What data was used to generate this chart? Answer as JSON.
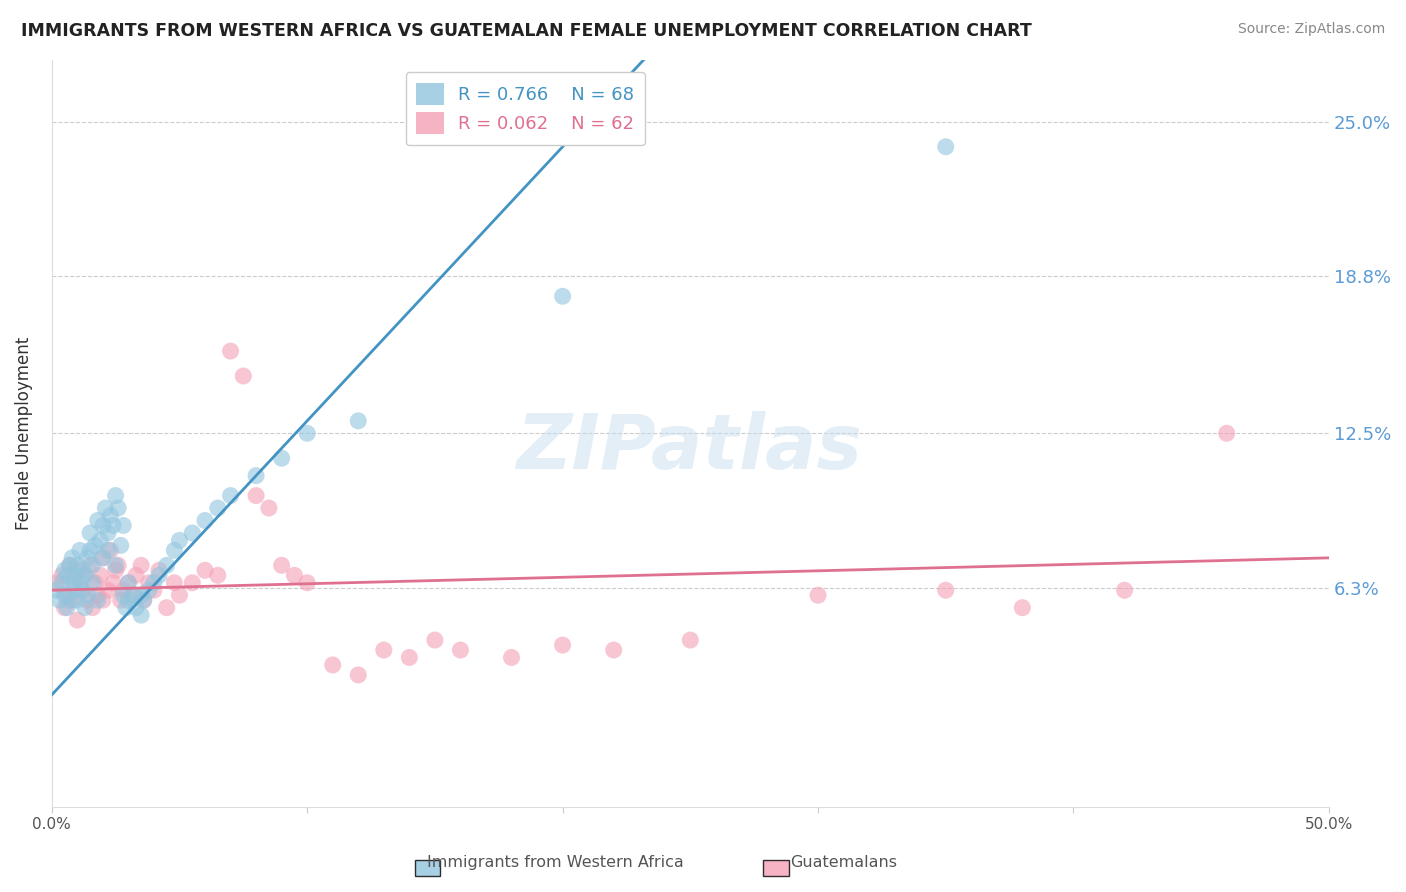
{
  "title": "IMMIGRANTS FROM WESTERN AFRICA VS GUATEMALAN FEMALE UNEMPLOYMENT CORRELATION CHART",
  "source": "Source: ZipAtlas.com",
  "ylabel": "Female Unemployment",
  "xlim": [
    0.0,
    0.5
  ],
  "ylim": [
    -0.025,
    0.275
  ],
  "legend_r1": "R = 0.766",
  "legend_n1": "N = 68",
  "legend_r2": "R = 0.062",
  "legend_n2": "N = 62",
  "color_blue": "#92c5de",
  "color_pink": "#f4a0b5",
  "regression_blue_color": "#4393c3",
  "regression_pink_color": "#e07090",
  "watermark": "ZIPatlas",
  "blue_scatter": [
    [
      0.002,
      0.062
    ],
    [
      0.003,
      0.058
    ],
    [
      0.004,
      0.065
    ],
    [
      0.005,
      0.07
    ],
    [
      0.005,
      0.06
    ],
    [
      0.006,
      0.055
    ],
    [
      0.006,
      0.068
    ],
    [
      0.007,
      0.072
    ],
    [
      0.007,
      0.058
    ],
    [
      0.008,
      0.065
    ],
    [
      0.008,
      0.075
    ],
    [
      0.009,
      0.062
    ],
    [
      0.009,
      0.068
    ],
    [
      0.01,
      0.058
    ],
    [
      0.01,
      0.072
    ],
    [
      0.011,
      0.065
    ],
    [
      0.011,
      0.078
    ],
    [
      0.012,
      0.07
    ],
    [
      0.012,
      0.062
    ],
    [
      0.013,
      0.068
    ],
    [
      0.013,
      0.055
    ],
    [
      0.014,
      0.075
    ],
    [
      0.014,
      0.06
    ],
    [
      0.015,
      0.085
    ],
    [
      0.015,
      0.078
    ],
    [
      0.016,
      0.072
    ],
    [
      0.016,
      0.065
    ],
    [
      0.017,
      0.08
    ],
    [
      0.018,
      0.09
    ],
    [
      0.018,
      0.058
    ],
    [
      0.019,
      0.082
    ],
    [
      0.02,
      0.088
    ],
    [
      0.02,
      0.075
    ],
    [
      0.021,
      0.095
    ],
    [
      0.022,
      0.085
    ],
    [
      0.022,
      0.078
    ],
    [
      0.023,
      0.092
    ],
    [
      0.024,
      0.088
    ],
    [
      0.025,
      0.1
    ],
    [
      0.025,
      0.072
    ],
    [
      0.026,
      0.095
    ],
    [
      0.027,
      0.08
    ],
    [
      0.028,
      0.088
    ],
    [
      0.028,
      0.06
    ],
    [
      0.029,
      0.055
    ],
    [
      0.03,
      0.058
    ],
    [
      0.03,
      0.065
    ],
    [
      0.032,
      0.06
    ],
    [
      0.033,
      0.055
    ],
    [
      0.035,
      0.052
    ],
    [
      0.035,
      0.06
    ],
    [
      0.036,
      0.058
    ],
    [
      0.038,
      0.062
    ],
    [
      0.04,
      0.065
    ],
    [
      0.042,
      0.068
    ],
    [
      0.045,
      0.072
    ],
    [
      0.048,
      0.078
    ],
    [
      0.05,
      0.082
    ],
    [
      0.055,
      0.085
    ],
    [
      0.06,
      0.09
    ],
    [
      0.065,
      0.095
    ],
    [
      0.07,
      0.1
    ],
    [
      0.08,
      0.108
    ],
    [
      0.09,
      0.115
    ],
    [
      0.1,
      0.125
    ],
    [
      0.12,
      0.13
    ],
    [
      0.2,
      0.18
    ],
    [
      0.35,
      0.24
    ]
  ],
  "pink_scatter": [
    [
      0.002,
      0.065
    ],
    [
      0.004,
      0.068
    ],
    [
      0.005,
      0.055
    ],
    [
      0.006,
      0.06
    ],
    [
      0.007,
      0.072
    ],
    [
      0.008,
      0.058
    ],
    [
      0.009,
      0.065
    ],
    [
      0.01,
      0.05
    ],
    [
      0.01,
      0.07
    ],
    [
      0.012,
      0.062
    ],
    [
      0.013,
      0.068
    ],
    [
      0.014,
      0.058
    ],
    [
      0.015,
      0.072
    ],
    [
      0.016,
      0.055
    ],
    [
      0.017,
      0.065
    ],
    [
      0.018,
      0.06
    ],
    [
      0.019,
      0.068
    ],
    [
      0.02,
      0.075
    ],
    [
      0.02,
      0.058
    ],
    [
      0.022,
      0.062
    ],
    [
      0.023,
      0.078
    ],
    [
      0.024,
      0.065
    ],
    [
      0.025,
      0.07
    ],
    [
      0.026,
      0.072
    ],
    [
      0.027,
      0.058
    ],
    [
      0.028,
      0.062
    ],
    [
      0.03,
      0.065
    ],
    [
      0.032,
      0.06
    ],
    [
      0.033,
      0.068
    ],
    [
      0.035,
      0.072
    ],
    [
      0.036,
      0.058
    ],
    [
      0.038,
      0.065
    ],
    [
      0.04,
      0.062
    ],
    [
      0.042,
      0.07
    ],
    [
      0.045,
      0.055
    ],
    [
      0.048,
      0.065
    ],
    [
      0.05,
      0.06
    ],
    [
      0.055,
      0.065
    ],
    [
      0.06,
      0.07
    ],
    [
      0.065,
      0.068
    ],
    [
      0.07,
      0.158
    ],
    [
      0.075,
      0.148
    ],
    [
      0.08,
      0.1
    ],
    [
      0.085,
      0.095
    ],
    [
      0.09,
      0.072
    ],
    [
      0.095,
      0.068
    ],
    [
      0.1,
      0.065
    ],
    [
      0.11,
      0.032
    ],
    [
      0.12,
      0.028
    ],
    [
      0.13,
      0.038
    ],
    [
      0.14,
      0.035
    ],
    [
      0.15,
      0.042
    ],
    [
      0.16,
      0.038
    ],
    [
      0.18,
      0.035
    ],
    [
      0.2,
      0.04
    ],
    [
      0.22,
      0.038
    ],
    [
      0.25,
      0.042
    ],
    [
      0.3,
      0.06
    ],
    [
      0.35,
      0.062
    ],
    [
      0.38,
      0.055
    ],
    [
      0.42,
      0.062
    ],
    [
      0.46,
      0.125
    ]
  ],
  "blue_line": [
    0.0,
    0.5,
    0.02,
    0.57
  ],
  "pink_line": [
    0.0,
    0.5,
    0.062,
    0.075
  ],
  "background_color": "#ffffff",
  "grid_color": "#cccccc",
  "title_color": "#222222",
  "right_axis_color": "#5b9bd5",
  "ytick_positions": [
    0.063,
    0.125,
    0.188,
    0.25
  ],
  "ytick_labels": [
    "6.3%",
    "12.5%",
    "18.8%",
    "25.0%"
  ]
}
